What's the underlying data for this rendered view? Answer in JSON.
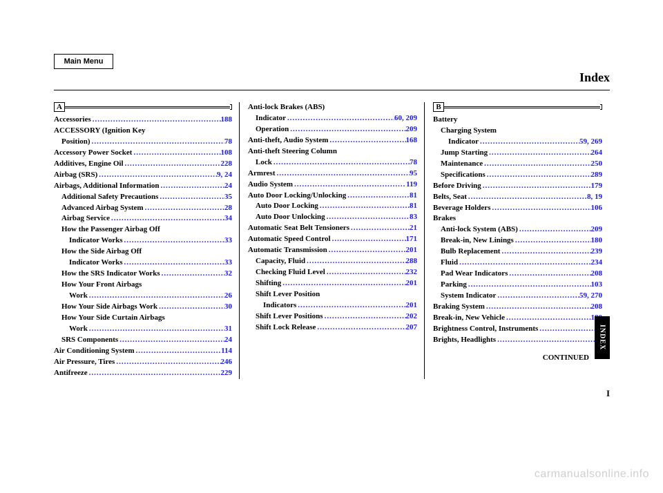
{
  "button": {
    "main_menu": "Main Menu"
  },
  "header": {
    "title": "Index"
  },
  "tab": {
    "label": "INDEX"
  },
  "footer": {
    "continued": "CONTINUED",
    "roman": "I",
    "watermark": "carmanualsonline.info"
  },
  "dots": "...........................................................................",
  "letters": {
    "A": "A",
    "B": "B"
  },
  "col1": [
    {
      "l": "Accessories",
      "p": "188",
      "i": 0
    },
    {
      "l": "ACCESSORY (Ignition Key",
      "p": "",
      "i": 0
    },
    {
      "l": "Position)",
      "p": "78",
      "i": 1
    },
    {
      "l": "Accessory Power Socket",
      "p": "108",
      "i": 0
    },
    {
      "l": "Additives, Engine Oil",
      "p": "228",
      "i": 0
    },
    {
      "l": "Airbag (SRS)",
      "p": "9, 24",
      "i": 0
    },
    {
      "l": "Airbags, Additional Information",
      "p": "24",
      "i": 0
    },
    {
      "l": "Additional Safety Precautions",
      "p": "35",
      "i": 1
    },
    {
      "l": "Advanced Airbag System",
      "p": "28",
      "i": 1
    },
    {
      "l": "Airbag Service",
      "p": "34",
      "i": 1
    },
    {
      "l": "How the Passenger Airbag Off",
      "p": "",
      "i": 1
    },
    {
      "l": "Indicator Works",
      "p": "33",
      "i": 2
    },
    {
      "l": "How the Side Airbag Off",
      "p": "",
      "i": 1
    },
    {
      "l": "Indicator Works",
      "p": "33",
      "i": 2
    },
    {
      "l": "How the SRS Indicator Works",
      "p": "32",
      "i": 1
    },
    {
      "l": "How Your Front Airbags",
      "p": "",
      "i": 1
    },
    {
      "l": "Work",
      "p": "26",
      "i": 2
    },
    {
      "l": "How Your Side Airbags Work",
      "p": "30",
      "i": 1
    },
    {
      "l": "How Your Side Curtain Airbags",
      "p": "",
      "i": 1
    },
    {
      "l": "Work",
      "p": "31",
      "i": 2
    },
    {
      "l": "SRS Components",
      "p": "24",
      "i": 1
    },
    {
      "l": "Air Conditioning System",
      "p": "114",
      "i": 0
    },
    {
      "l": "Air Pressure, Tires",
      "p": "246",
      "i": 0
    },
    {
      "l": "Antifreeze",
      "p": "229",
      "i": 0
    }
  ],
  "col2": [
    {
      "l": "Anti-lock Brakes (ABS)",
      "p": "",
      "i": 0
    },
    {
      "l": "Indicator",
      "p": "60, 209",
      "i": 1
    },
    {
      "l": "Operation",
      "p": "209",
      "i": 1
    },
    {
      "l": "Anti-theft, Audio System",
      "p": "168",
      "i": 0
    },
    {
      "l": "Anti-theft Steering Column",
      "p": "",
      "i": 0
    },
    {
      "l": "Lock",
      "p": "78",
      "i": 1
    },
    {
      "l": "Armrest",
      "p": "95",
      "i": 0
    },
    {
      "l": "Audio System",
      "p": "119",
      "i": 0
    },
    {
      "l": "Auto Door Locking/Unlocking",
      "p": "81",
      "i": 0
    },
    {
      "l": "Auto Door Locking",
      "p": "81",
      "i": 1
    },
    {
      "l": "Auto Door Unlocking",
      "p": "83",
      "i": 1
    },
    {
      "l": "Automatic Seat Belt Tensioners",
      "p": "21",
      "i": 0
    },
    {
      "l": "Automatic Speed Control",
      "p": "171",
      "i": 0
    },
    {
      "l": "Automatic Transmission",
      "p": "201",
      "i": 0
    },
    {
      "l": "Capacity, Fluid",
      "p": "288",
      "i": 1
    },
    {
      "l": "Checking Fluid Level",
      "p": "232",
      "i": 1
    },
    {
      "l": "Shifting",
      "p": "201",
      "i": 1
    },
    {
      "l": "Shift Lever Position",
      "p": "",
      "i": 1
    },
    {
      "l": "Indicators",
      "p": "201",
      "i": 2
    },
    {
      "l": "Shift Lever Positions",
      "p": "202",
      "i": 1
    },
    {
      "l": "Shift Lock Release",
      "p": "207",
      "i": 1
    }
  ],
  "col3": [
    {
      "l": "Battery",
      "p": "",
      "i": 0
    },
    {
      "l": "Charging System",
      "p": "",
      "i": 1
    },
    {
      "l": "Indicator",
      "p": "59, 269",
      "i": 2
    },
    {
      "l": "Jump Starting",
      "p": "264",
      "i": 1
    },
    {
      "l": "Maintenance",
      "p": "250",
      "i": 1
    },
    {
      "l": "Specifications",
      "p": "289",
      "i": 1
    },
    {
      "l": "Before Driving",
      "p": "179",
      "i": 0
    },
    {
      "l": "Belts, Seat",
      "p": "8, 19",
      "i": 0
    },
    {
      "l": "Beverage Holders",
      "p": "106",
      "i": 0
    },
    {
      "l": "Brakes",
      "p": "",
      "i": 0
    },
    {
      "l": "Anti-lock System (ABS)",
      "p": "209",
      "i": 1
    },
    {
      "l": "Break-in, New Linings",
      "p": "180",
      "i": 1
    },
    {
      "l": "Bulb Replacement",
      "p": "239",
      "i": 1
    },
    {
      "l": "Fluid",
      "p": "234",
      "i": 1
    },
    {
      "l": "Pad Wear Indicators",
      "p": "208",
      "i": 1
    },
    {
      "l": "Parking",
      "p": "103",
      "i": 1
    },
    {
      "l": "System Indicator",
      "p": "59, 270",
      "i": 1
    },
    {
      "l": "Braking System",
      "p": "208",
      "i": 0
    },
    {
      "l": "Break-in, New Vehicle",
      "p": "180",
      "i": 0
    },
    {
      "l": "Brightness Control, Instruments",
      "p": "72",
      "i": 0
    },
    {
      "l": "Brights, Headlights",
      "p": "71",
      "i": 0
    }
  ]
}
